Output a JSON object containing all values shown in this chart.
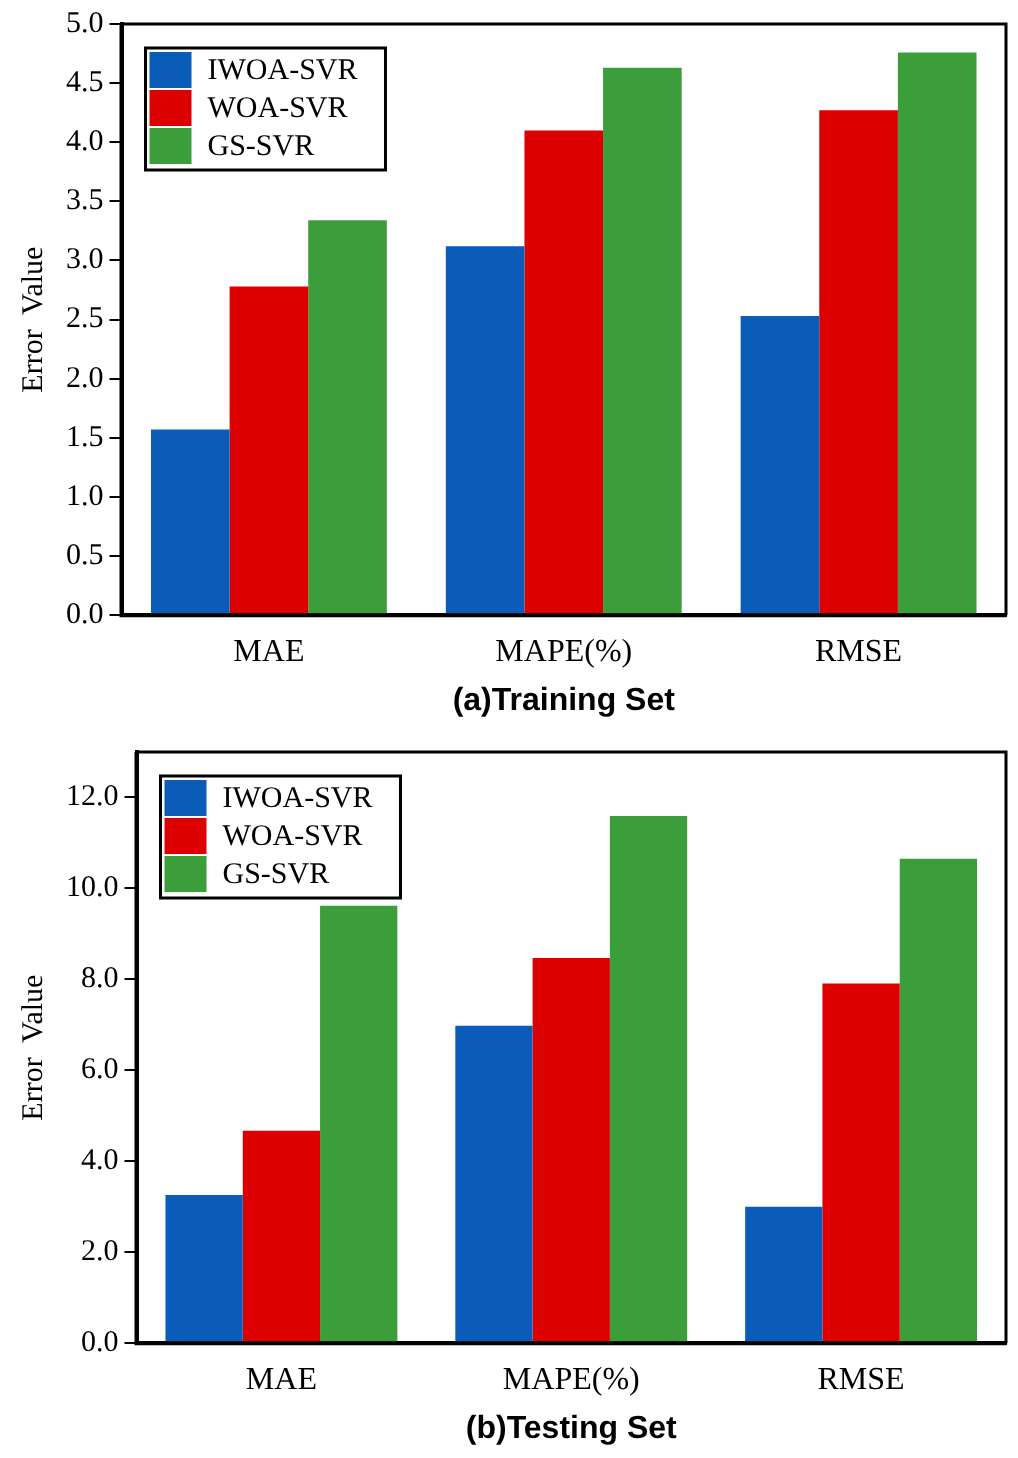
{
  "chart_data": [
    {
      "type": "bar",
      "xlabel": "(a)Training Set",
      "ylabel": "Error  Value",
      "categories": [
        "MAE",
        "MAPE(%)",
        "RMSE"
      ],
      "series": [
        {
          "name": "IWOA-SVR",
          "color": "#0a5cb8",
          "values": [
            1.57,
            3.12,
            2.53
          ]
        },
        {
          "name": "WOA-SVR",
          "color": "#dd0000",
          "values": [
            2.78,
            4.1,
            4.27
          ]
        },
        {
          "name": "GS-SVR",
          "color": "#3c9e3a",
          "values": [
            3.34,
            4.63,
            4.76
          ]
        }
      ],
      "ylim": [
        0,
        5
      ],
      "yticks": [
        {
          "value": 0,
          "label": "0.0"
        },
        {
          "value": 0.5,
          "label": "0.5"
        },
        {
          "value": 1,
          "label": "1.0"
        },
        {
          "value": 1.5,
          "label": "1.5"
        },
        {
          "value": 2,
          "label": "2.0"
        },
        {
          "value": 2.5,
          "label": "2.5"
        },
        {
          "value": 3,
          "label": "3.0"
        },
        {
          "value": 3.5,
          "label": "3.5"
        },
        {
          "value": 4,
          "label": "4.0"
        },
        {
          "value": 4.5,
          "label": "4.5"
        },
        {
          "value": 5,
          "label": "5.0"
        }
      ],
      "grid": false,
      "legend": "top left"
    },
    {
      "type": "bar",
      "xlabel": "(b)Testing Set",
      "ylabel": "Error  Value",
      "categories": [
        "MAE",
        "MAPE(%)",
        "RMSE"
      ],
      "series": [
        {
          "name": "IWOA-SVR",
          "color": "#0a5cb8",
          "values": [
            3.26,
            6.98,
            3.0
          ]
        },
        {
          "name": "WOA-SVR",
          "color": "#dd0000",
          "values": [
            4.67,
            8.47,
            7.91
          ]
        },
        {
          "name": "GS-SVR",
          "color": "#3c9e3a",
          "values": [
            9.62,
            11.59,
            10.65
          ]
        }
      ],
      "ylim": [
        0,
        13
      ],
      "yticks": [
        {
          "value": 0,
          "label": "0.0"
        },
        {
          "value": 2,
          "label": "2.0"
        },
        {
          "value": 4,
          "label": "4.0"
        },
        {
          "value": 6,
          "label": "6.0"
        },
        {
          "value": 8,
          "label": "8.0"
        },
        {
          "value": 10,
          "label": "10.0"
        },
        {
          "value": 12,
          "label": "12.0"
        }
      ],
      "grid": false,
      "legend": "top left"
    }
  ]
}
